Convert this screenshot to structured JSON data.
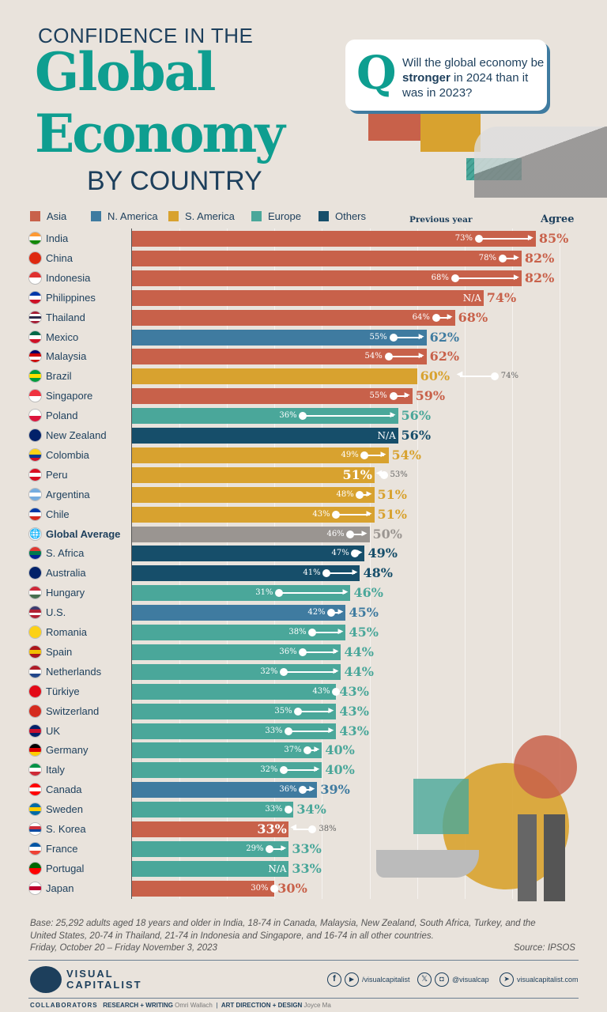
{
  "title": {
    "line1": "CONFIDENCE IN THE",
    "line2": "Global",
    "line3": "Economy",
    "line4": "BY COUNTRY"
  },
  "question": {
    "q": "Q",
    "text_pre": "Will the global economy be ",
    "text_bold": "stronger",
    "text_post": " in 2024 than it was in 2023?"
  },
  "legend": [
    {
      "label": "Asia",
      "color": "#c8614a"
    },
    {
      "label": "N. America",
      "color": "#3f7ba0"
    },
    {
      "label": "S. America",
      "color": "#d8a22f"
    },
    {
      "label": "Europe",
      "color": "#4aa79a"
    },
    {
      "label": "Others",
      "color": "#164e6a"
    }
  ],
  "global_color": "#9a9591",
  "chart_data": {
    "type": "bar",
    "orientation": "horizontal",
    "xlim": [
      0,
      100
    ],
    "grid": true,
    "annotation_previous": "Previous year",
    "value_header": "Agree",
    "rows": [
      {
        "country": "India",
        "region": "Asia",
        "value": 85,
        "prev": 73,
        "flag": [
          "#ff9933",
          "#ffffff",
          "#138808"
        ]
      },
      {
        "country": "China",
        "region": "Asia",
        "value": 82,
        "prev": 78,
        "flag": [
          "#de2910"
        ]
      },
      {
        "country": "Indonesia",
        "region": "Asia",
        "value": 82,
        "prev": 68,
        "flag": [
          "#e0302f",
          "#ffffff"
        ]
      },
      {
        "country": "Philippines",
        "region": "Asia",
        "value": 74,
        "prev": null,
        "flag": [
          "#0038a8",
          "#ffffff",
          "#ce1126"
        ]
      },
      {
        "country": "Thailand",
        "region": "Asia",
        "value": 68,
        "prev": 64,
        "flag": [
          "#a51931",
          "#ffffff",
          "#2d2a4a",
          "#ffffff",
          "#a51931"
        ]
      },
      {
        "country": "Mexico",
        "region": "N. America",
        "value": 62,
        "prev": 55,
        "flag": [
          "#006847",
          "#ffffff",
          "#ce1126"
        ]
      },
      {
        "country": "Malaysia",
        "region": "Asia",
        "value": 62,
        "prev": 54,
        "flag": [
          "#010066",
          "#cc0001",
          "#ffffff",
          "#cc0001"
        ]
      },
      {
        "country": "Brazil",
        "region": "S. America",
        "value": 60,
        "prev": 74,
        "flag": [
          "#009c3b",
          "#ffdf00",
          "#009c3b"
        ]
      },
      {
        "country": "Singapore",
        "region": "Asia",
        "value": 59,
        "prev": 55,
        "flag": [
          "#ef3340",
          "#ffffff"
        ]
      },
      {
        "country": "Poland",
        "region": "Europe",
        "value": 56,
        "prev": 36,
        "flag": [
          "#ffffff",
          "#dc143c"
        ]
      },
      {
        "country": "New Zealand",
        "region": "Others",
        "value": 56,
        "prev": null,
        "flag": [
          "#012169",
          "#012169"
        ]
      },
      {
        "country": "Colombia",
        "region": "S. America",
        "value": 54,
        "prev": 49,
        "flag": [
          "#fcd116",
          "#fcd116",
          "#003893",
          "#ce1126"
        ]
      },
      {
        "country": "Peru",
        "region": "S. America",
        "value": 51,
        "prev": 53,
        "flag": [
          "#d91023",
          "#ffffff",
          "#d91023"
        ]
      },
      {
        "country": "Argentina",
        "region": "S. America",
        "value": 51,
        "prev": 48,
        "flag": [
          "#74acdf",
          "#ffffff",
          "#74acdf"
        ]
      },
      {
        "country": "Chile",
        "region": "S. America",
        "value": 51,
        "prev": 43,
        "flag": [
          "#0039a6",
          "#ffffff",
          "#d52b1e"
        ]
      },
      {
        "country": "Global Average",
        "region": "Global",
        "value": 50,
        "prev": 46,
        "flag": [
          "#1d3f5c"
        ]
      },
      {
        "country": "S. Africa",
        "region": "Others",
        "value": 49,
        "prev": 47,
        "flag": [
          "#de3831",
          "#007a4d",
          "#002395"
        ]
      },
      {
        "country": "Australia",
        "region": "Others",
        "value": 48,
        "prev": 41,
        "flag": [
          "#012169",
          "#012169"
        ]
      },
      {
        "country": "Hungary",
        "region": "Europe",
        "value": 46,
        "prev": 31,
        "flag": [
          "#ce2939",
          "#ffffff",
          "#477050"
        ]
      },
      {
        "country": "U.S.",
        "region": "N. America",
        "value": 45,
        "prev": 42,
        "flag": [
          "#3c3b6e",
          "#b22234",
          "#ffffff",
          "#b22234"
        ]
      },
      {
        "country": "Romania",
        "region": "Europe",
        "value": 45,
        "prev": 38,
        "flag": [
          "#fcd116"
        ]
      },
      {
        "country": "Spain",
        "region": "Europe",
        "value": 44,
        "prev": 36,
        "flag": [
          "#aa151b",
          "#f1bf00",
          "#aa151b"
        ]
      },
      {
        "country": "Netherlands",
        "region": "Europe",
        "value": 44,
        "prev": 32,
        "flag": [
          "#ae1c28",
          "#ffffff",
          "#21468b"
        ]
      },
      {
        "country": "Türkiye",
        "region": "Europe",
        "value": 43,
        "prev": 43,
        "flag": [
          "#e30a17"
        ]
      },
      {
        "country": "Switzerland",
        "region": "Europe",
        "value": 43,
        "prev": 35,
        "flag": [
          "#d52b1e"
        ]
      },
      {
        "country": "UK",
        "region": "Europe",
        "value": 43,
        "prev": 33,
        "flag": [
          "#012169",
          "#c8102e",
          "#012169"
        ]
      },
      {
        "country": "Germany",
        "region": "Europe",
        "value": 40,
        "prev": 37,
        "flag": [
          "#000000",
          "#dd0000",
          "#ffce00"
        ]
      },
      {
        "country": "Italy",
        "region": "Europe",
        "value": 40,
        "prev": 32,
        "flag": [
          "#009246",
          "#ffffff",
          "#ce2b37"
        ]
      },
      {
        "country": "Canada",
        "region": "N. America",
        "value": 39,
        "prev": 36,
        "flag": [
          "#ff0000",
          "#ffffff",
          "#ff0000"
        ]
      },
      {
        "country": "Sweden",
        "region": "Europe",
        "value": 34,
        "prev": 33,
        "flag": [
          "#006aa7",
          "#fecc00",
          "#006aa7"
        ]
      },
      {
        "country": "S. Korea",
        "region": "Asia",
        "value": 33,
        "prev": 38,
        "flag": [
          "#ffffff",
          "#cd2e3a",
          "#0047a0",
          "#ffffff"
        ]
      },
      {
        "country": "France",
        "region": "Europe",
        "value": 33,
        "prev": 29,
        "flag": [
          "#0055a4",
          "#ffffff",
          "#ef4135"
        ]
      },
      {
        "country": "Portugal",
        "region": "Europe",
        "value": 33,
        "prev": null,
        "flag": [
          "#006600",
          "#ff0000"
        ]
      },
      {
        "country": "Japan",
        "region": "Asia",
        "value": 30,
        "prev": 30,
        "flag": [
          "#ffffff",
          "#bc002d",
          "#ffffff"
        ]
      }
    ]
  },
  "footer": {
    "base": "Base: 25,292 adults aged 18 years and older in India, 18-74 in Canada, Malaysia, New Zealand, South Africa, Turkey, and the United States, 20-74 in Thailand, 21-74 in Indonesia and Singapore, and 16-74 in all other countries.",
    "dates": "Friday, October 20 – Friday November 3, 2023",
    "source": "Source: IPSOS",
    "brand_line1": "VISUAL",
    "brand_line2": "CAPITALIST",
    "social1": "/visualcapitalist",
    "social2": "@visualcap",
    "website": "visualcapitalist.com",
    "collab": "COLLABORATORS",
    "research_label": "RESEARCH + WRITING",
    "research_name": "Omri Wallach",
    "design_label": "ART DIRECTION + DESIGN",
    "design_name": "Joyce Ma"
  },
  "na_label": "N/A"
}
